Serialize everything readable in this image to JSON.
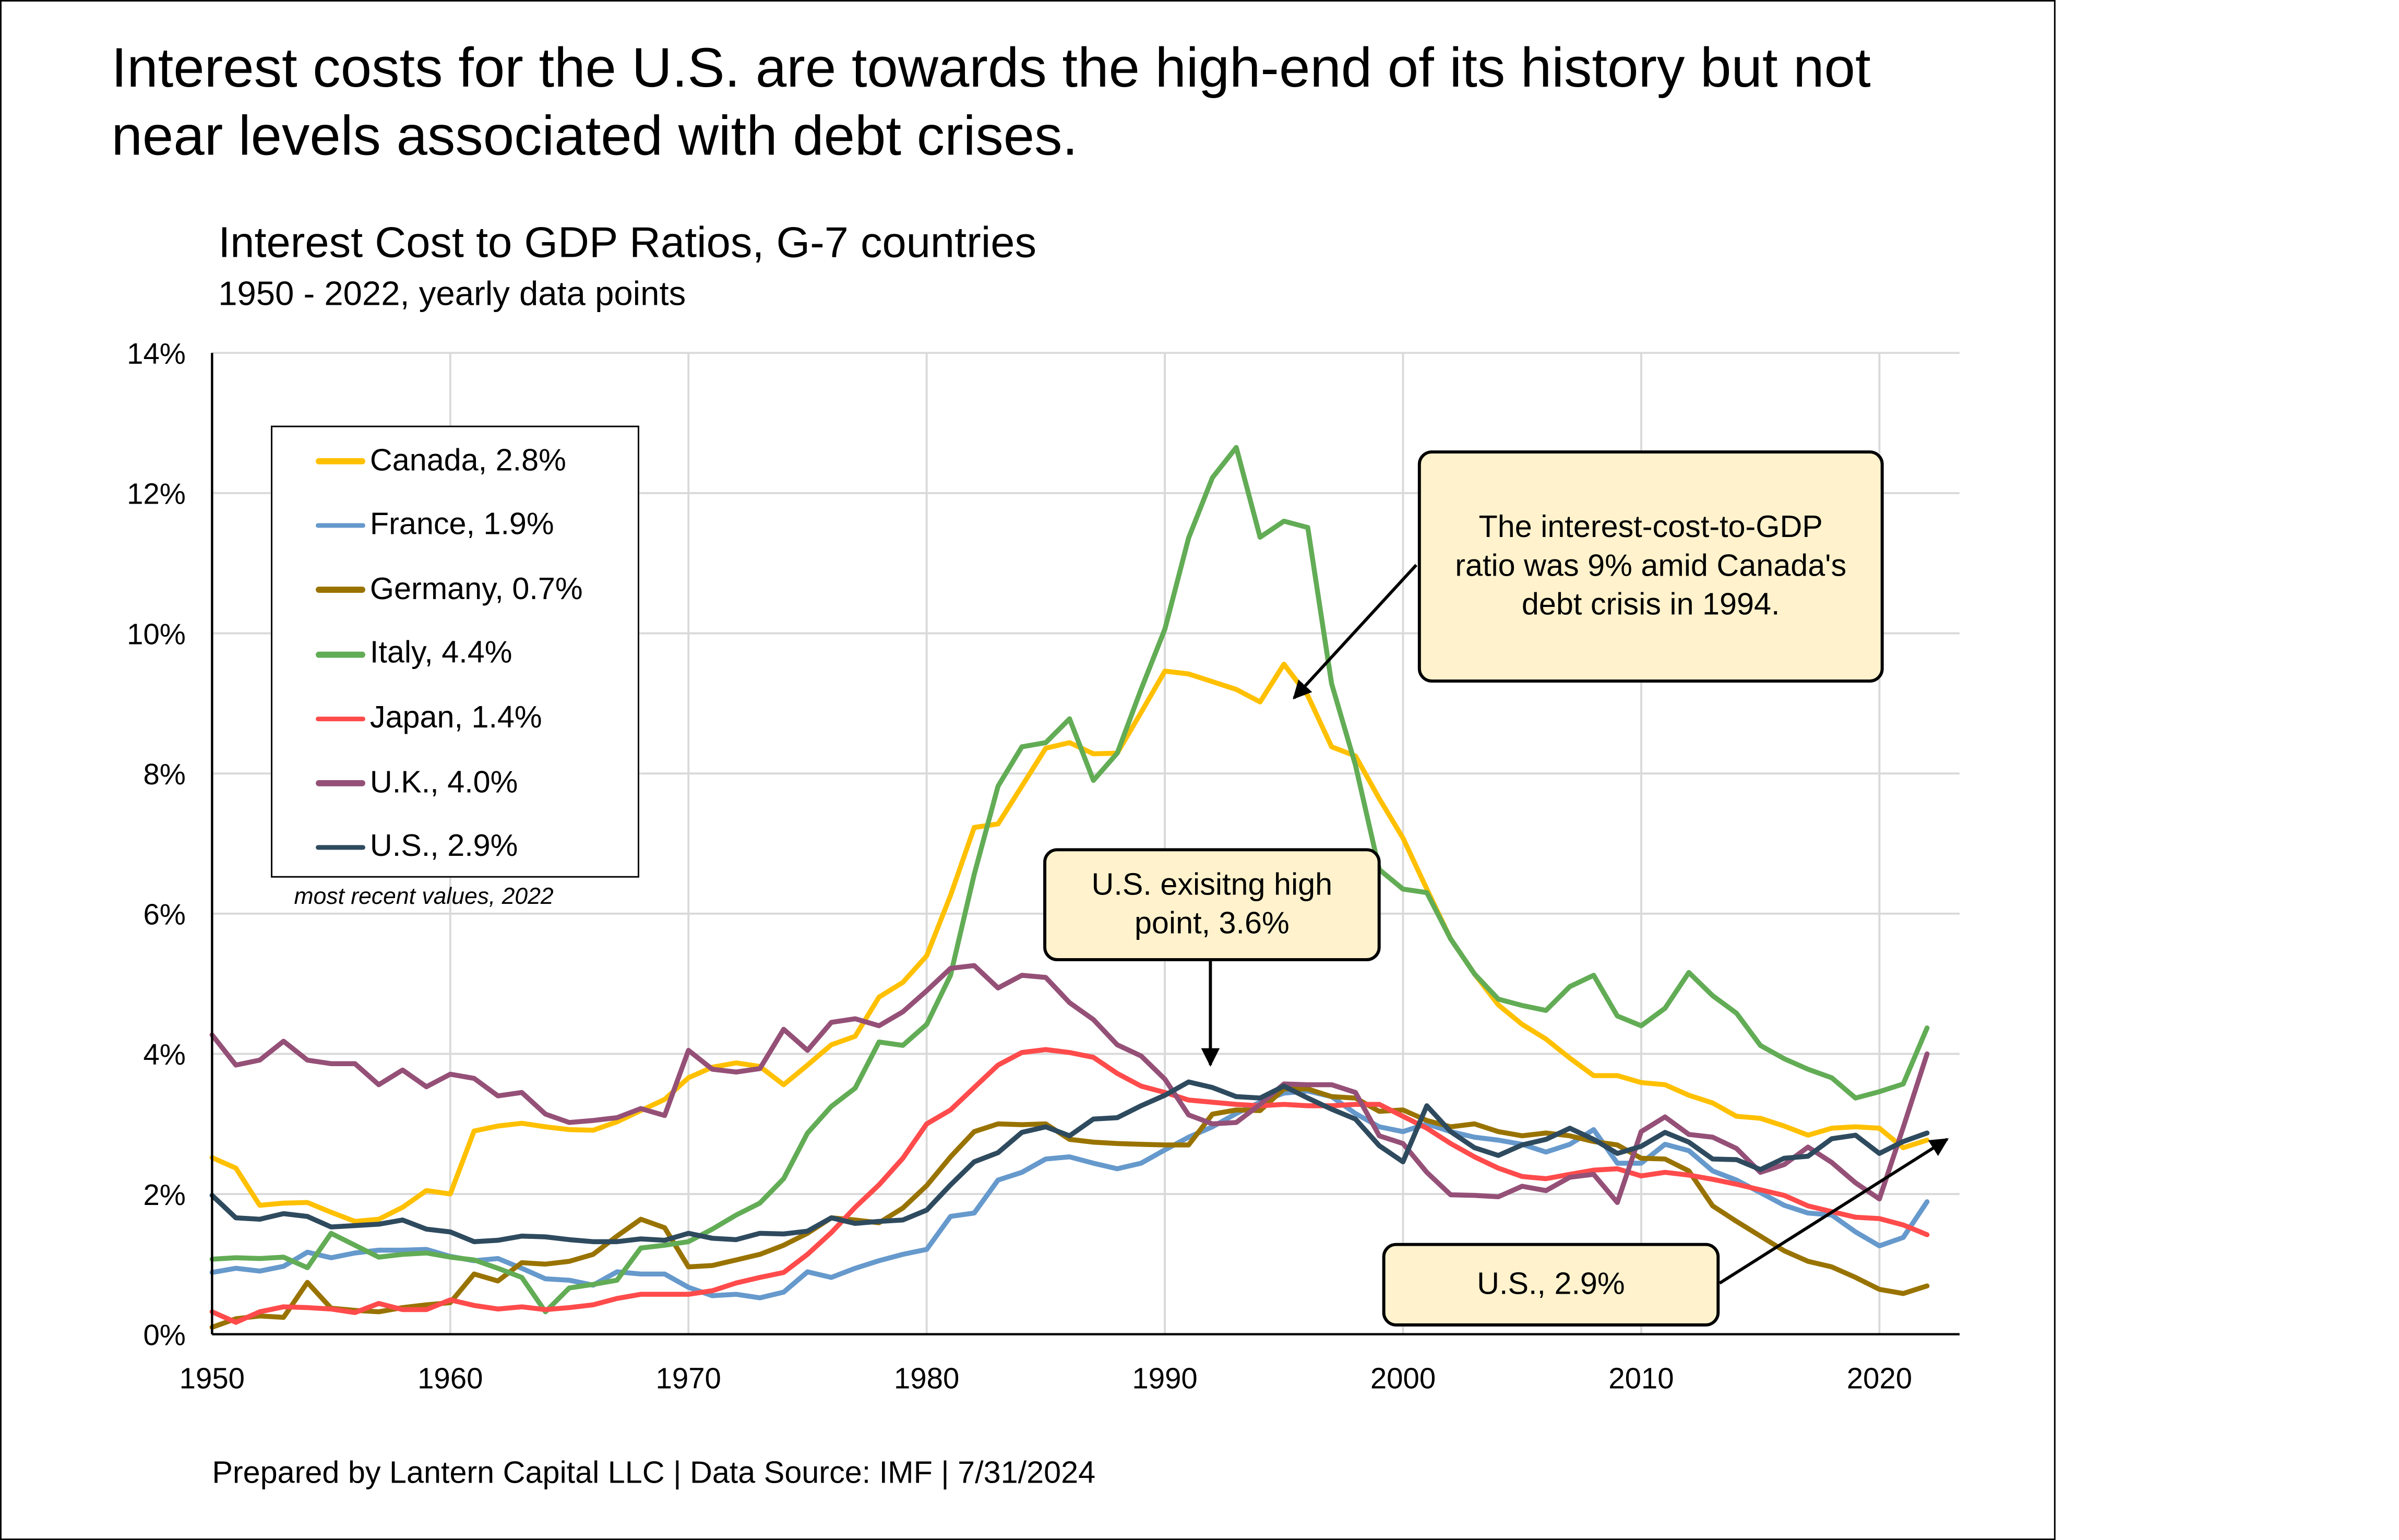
{
  "headline": "Interest costs for the U.S. are towards the high-end of its history but not near levels associated with debt crises.",
  "footer": "Prepared by Lantern Capital LLC | Data Source: IMF | 7/31/2024",
  "legend_note": "most recent values, 2022",
  "callouts": {
    "canada": "The interest-cost-to-GDP ratio was 9% amid Canada's debt crisis in 1994.",
    "us_high": "U.S. exisitng high point, 3.6%",
    "us_latest": "U.S., 2.9%"
  },
  "chart_data": {
    "type": "line",
    "title": "Interest Cost to GDP Ratios, G-7 countries",
    "subtitle": "1950 - 2022, yearly data points",
    "xlabel": "",
    "ylabel": "",
    "x_start": 1950,
    "x_end": 2022,
    "xlim": [
      1950,
      2022
    ],
    "ylim": [
      0,
      14
    ],
    "x_ticks": [
      "1950",
      "1960",
      "1970",
      "1980",
      "1990",
      "2000",
      "2010",
      "2020"
    ],
    "y_ticks": [
      "0%",
      "2%",
      "4%",
      "6%",
      "8%",
      "10%",
      "12%",
      "14%"
    ],
    "grid": true,
    "legend_position": "top-left",
    "series": [
      {
        "name": "Canada, 2.8%",
        "color": "#FFC000",
        "values": [
          2.52,
          2.37,
          1.84,
          1.87,
          1.88,
          1.74,
          1.61,
          1.64,
          1.81,
          2.05,
          2.0,
          2.9,
          2.97,
          3.01,
          2.96,
          2.92,
          2.91,
          3.03,
          3.19,
          3.35,
          3.66,
          3.81,
          3.87,
          3.82,
          3.56,
          3.84,
          4.13,
          4.25,
          4.81,
          5.02,
          5.4,
          6.26,
          7.23,
          7.28,
          7.82,
          8.36,
          8.44,
          8.28,
          8.29,
          8.87,
          9.46,
          9.42,
          9.31,
          9.2,
          9.02,
          9.56,
          9.11,
          8.38,
          8.25,
          7.64,
          7.08,
          6.35,
          5.64,
          5.14,
          4.7,
          4.42,
          4.21,
          3.94,
          3.69,
          3.69,
          3.59,
          3.56,
          3.41,
          3.3,
          3.11,
          3.08,
          2.97,
          2.84,
          2.94,
          2.96,
          2.94,
          2.66,
          2.77
        ]
      },
      {
        "name": "France, 1.9%",
        "color": "#6699CC",
        "values": [
          0.88,
          0.94,
          0.9,
          0.97,
          1.17,
          1.09,
          1.16,
          1.2,
          1.2,
          1.21,
          1.11,
          1.05,
          1.08,
          0.94,
          0.79,
          0.77,
          0.7,
          0.89,
          0.86,
          0.86,
          0.67,
          0.55,
          0.57,
          0.52,
          0.6,
          0.89,
          0.81,
          0.94,
          1.05,
          1.14,
          1.21,
          1.68,
          1.73,
          2.2,
          2.31,
          2.5,
          2.53,
          2.44,
          2.36,
          2.44,
          2.63,
          2.81,
          2.96,
          3.15,
          3.31,
          3.44,
          3.47,
          3.39,
          3.15,
          2.96,
          2.89,
          3.0,
          2.89,
          2.81,
          2.77,
          2.71,
          2.6,
          2.71,
          2.92,
          2.44,
          2.44,
          2.71,
          2.62,
          2.33,
          2.2,
          2.02,
          1.84,
          1.73,
          1.7,
          1.46,
          1.26,
          1.38,
          1.89
        ]
      },
      {
        "name": "Germany, 0.7%",
        "color": "#997300",
        "values": [
          0.1,
          0.22,
          0.26,
          0.24,
          0.74,
          0.37,
          0.34,
          0.32,
          0.38,
          0.42,
          0.45,
          0.86,
          0.76,
          1.02,
          1.0,
          1.04,
          1.14,
          1.4,
          1.64,
          1.52,
          0.96,
          0.98,
          1.06,
          1.14,
          1.27,
          1.44,
          1.66,
          1.63,
          1.59,
          1.8,
          2.12,
          2.53,
          2.89,
          3.0,
          2.99,
          3.0,
          2.78,
          2.74,
          2.72,
          2.71,
          2.7,
          2.7,
          3.14,
          3.2,
          3.19,
          3.5,
          3.5,
          3.39,
          3.37,
          3.18,
          3.2,
          3.05,
          2.96,
          3.0,
          2.89,
          2.83,
          2.87,
          2.83,
          2.75,
          2.7,
          2.51,
          2.5,
          2.33,
          1.83,
          1.61,
          1.4,
          1.19,
          1.04,
          0.96,
          0.81,
          0.64,
          0.58,
          0.69
        ]
      },
      {
        "name": "Italy, 4.4%",
        "color": "#62AC55",
        "values": [
          1.07,
          1.09,
          1.08,
          1.1,
          0.95,
          1.44,
          1.27,
          1.1,
          1.14,
          1.16,
          1.1,
          1.06,
          0.94,
          0.81,
          0.32,
          0.66,
          0.71,
          0.77,
          1.23,
          1.27,
          1.32,
          1.5,
          1.7,
          1.87,
          2.22,
          2.87,
          3.25,
          3.51,
          4.17,
          4.12,
          4.42,
          5.12,
          6.56,
          7.82,
          8.38,
          8.44,
          8.78,
          7.9,
          8.29,
          9.2,
          10.06,
          11.36,
          12.22,
          12.65,
          11.37,
          11.6,
          11.51,
          9.28,
          8.12,
          6.63,
          6.35,
          6.3,
          5.64,
          5.14,
          4.78,
          4.69,
          4.62,
          4.96,
          5.12,
          4.54,
          4.4,
          4.65,
          5.16,
          4.83,
          4.58,
          4.12,
          3.93,
          3.78,
          3.66,
          3.37,
          3.46,
          3.57,
          4.37
        ]
      },
      {
        "name": "Japan, 1.4%",
        "color": "#FF4B4B",
        "values": [
          0.32,
          0.17,
          0.32,
          0.39,
          0.38,
          0.36,
          0.31,
          0.44,
          0.35,
          0.35,
          0.49,
          0.41,
          0.36,
          0.39,
          0.35,
          0.38,
          0.42,
          0.51,
          0.57,
          0.57,
          0.57,
          0.62,
          0.73,
          0.81,
          0.88,
          1.14,
          1.45,
          1.81,
          2.13,
          2.51,
          3.0,
          3.2,
          3.52,
          3.84,
          4.02,
          4.06,
          4.02,
          3.95,
          3.72,
          3.54,
          3.45,
          3.34,
          3.31,
          3.28,
          3.26,
          3.28,
          3.26,
          3.26,
          3.28,
          3.28,
          3.11,
          2.94,
          2.72,
          2.53,
          2.37,
          2.25,
          2.22,
          2.28,
          2.34,
          2.36,
          2.26,
          2.31,
          2.27,
          2.21,
          2.14,
          2.06,
          1.98,
          1.83,
          1.75,
          1.67,
          1.65,
          1.56,
          1.42
        ]
      },
      {
        "name": "U.K., 4.0%",
        "color": "#955077",
        "values": [
          4.27,
          3.84,
          3.91,
          4.18,
          3.91,
          3.86,
          3.86,
          3.56,
          3.77,
          3.53,
          3.71,
          3.65,
          3.4,
          3.45,
          3.14,
          3.02,
          3.05,
          3.09,
          3.22,
          3.12,
          4.05,
          3.78,
          3.74,
          3.79,
          4.35,
          4.05,
          4.45,
          4.5,
          4.4,
          4.6,
          4.9,
          5.22,
          5.26,
          4.94,
          5.12,
          5.09,
          4.73,
          4.49,
          4.13,
          3.97,
          3.64,
          3.13,
          3.0,
          3.02,
          3.28,
          3.57,
          3.56,
          3.56,
          3.45,
          2.83,
          2.72,
          2.31,
          1.99,
          1.98,
          1.96,
          2.11,
          2.05,
          2.24,
          2.28,
          1.88,
          2.89,
          3.1,
          2.85,
          2.81,
          2.65,
          2.31,
          2.42,
          2.67,
          2.45,
          2.16,
          1.93,
          2.95,
          4.0
        ]
      },
      {
        "name": "U.S., 2.9%",
        "color": "#2E4A5E",
        "values": [
          1.98,
          1.66,
          1.64,
          1.72,
          1.68,
          1.53,
          1.55,
          1.57,
          1.63,
          1.5,
          1.46,
          1.32,
          1.34,
          1.4,
          1.39,
          1.35,
          1.32,
          1.32,
          1.36,
          1.34,
          1.44,
          1.37,
          1.35,
          1.44,
          1.43,
          1.47,
          1.66,
          1.58,
          1.61,
          1.63,
          1.77,
          2.13,
          2.46,
          2.59,
          2.88,
          2.96,
          2.83,
          3.07,
          3.09,
          3.26,
          3.41,
          3.6,
          3.52,
          3.39,
          3.37,
          3.54,
          3.37,
          3.21,
          3.07,
          2.69,
          2.46,
          3.26,
          2.89,
          2.66,
          2.55,
          2.7,
          2.78,
          2.94,
          2.78,
          2.58,
          2.68,
          2.88,
          2.74,
          2.5,
          2.49,
          2.35,
          2.51,
          2.54,
          2.79,
          2.84,
          2.58,
          2.75,
          2.87
        ]
      }
    ]
  }
}
